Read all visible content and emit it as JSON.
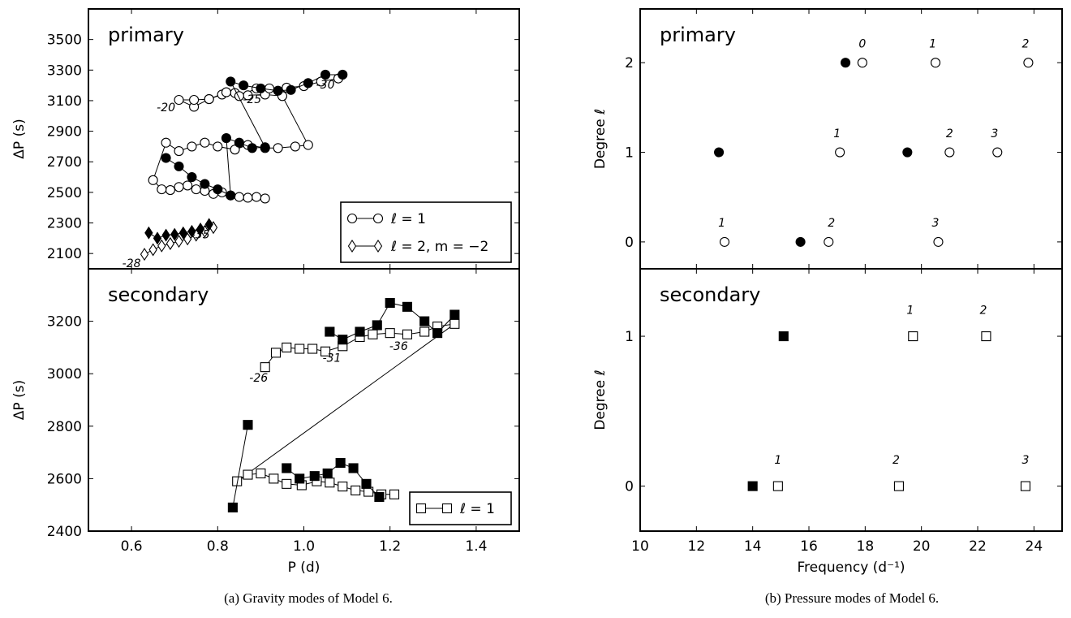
{
  "captions": {
    "a": "(a) Gravity modes of Model 6.",
    "b": "(b) Pressure modes of Model 6."
  },
  "colors": {
    "axes": "#000000",
    "filled": "#000000",
    "open": "#ffffff"
  },
  "chart_data": [
    {
      "id": "gravity-primary",
      "type": "scatter",
      "panel_label": "primary",
      "ylabel": "ΔP (s)",
      "xlabel": "",
      "xlim": [
        0.5,
        1.5
      ],
      "ylim": [
        2000,
        3700
      ],
      "yticks": [
        2100,
        2300,
        2500,
        2700,
        2900,
        3100,
        3300,
        3500
      ],
      "xticks": [],
      "legend_placement": "lower-right",
      "legend": [
        "ℓ = 1",
        "ℓ = 2, m = −2"
      ],
      "series": [
        {
          "marker": "circle",
          "fill": "open",
          "connected": true,
          "x": [
            0.91,
            0.89,
            0.87,
            0.85,
            0.83,
            0.81,
            0.79,
            0.77,
            0.75,
            0.73,
            0.71,
            0.69,
            0.67,
            0.65,
            0.68,
            0.71,
            0.74,
            0.77,
            0.8,
            0.84,
            0.87,
            0.91,
            0.94,
            0.98,
            1.01,
            0.95,
            0.91,
            0.87,
            0.84,
            0.81,
            0.78,
            0.745,
            0.71,
            0.745,
            0.78,
            0.82,
            0.85,
            0.89,
            0.92,
            0.96,
            1.0,
            1.04,
            1.08
          ],
          "y": [
            2460,
            2470,
            2465,
            2470,
            2480,
            2500,
            2490,
            2510,
            2520,
            2545,
            2535,
            2515,
            2520,
            2580,
            2825,
            2770,
            2800,
            2825,
            2800,
            2780,
            2810,
            2790,
            2790,
            2800,
            2810,
            3130,
            3140,
            3135,
            3150,
            3140,
            3110,
            3060,
            3105,
            3105,
            3110,
            3155,
            3130,
            3180,
            3180,
            3185,
            3195,
            3225,
            3245
          ]
        },
        {
          "marker": "circle",
          "fill": "filled",
          "connected": true,
          "x": [
            0.68,
            0.71,
            0.74,
            0.77,
            0.8,
            0.83,
            0.82,
            0.85,
            0.88,
            0.91,
            0.83,
            0.86,
            0.9,
            0.94,
            0.97,
            1.01,
            1.05,
            1.09
          ],
          "y": [
            2725,
            2670,
            2600,
            2555,
            2520,
            2480,
            2855,
            2825,
            2790,
            2795,
            3225,
            3200,
            3180,
            3165,
            3170,
            3215,
            3270,
            3270
          ]
        },
        {
          "marker": "diamond",
          "fill": "open",
          "connected": true,
          "x": [
            0.63,
            0.65,
            0.67,
            0.69,
            0.71,
            0.73,
            0.75,
            0.77,
            0.79
          ],
          "y": [
            2095,
            2125,
            2150,
            2165,
            2180,
            2195,
            2220,
            2245,
            2270
          ]
        },
        {
          "marker": "diamond",
          "fill": "filled",
          "connected": true,
          "x": [
            0.64,
            0.66,
            0.68,
            0.7,
            0.72,
            0.74,
            0.76,
            0.78
          ],
          "y": [
            2235,
            2200,
            2220,
            2225,
            2235,
            2245,
            2260,
            2290
          ]
        }
      ],
      "annotations": [
        {
          "text": "-20",
          "x": 0.68,
          "y": 3030
        },
        {
          "text": "-25",
          "x": 0.88,
          "y": 3085
        },
        {
          "text": "-30",
          "x": 1.05,
          "y": 3180
        },
        {
          "text": "-35",
          "x": 0.76,
          "y": 2200
        },
        {
          "text": "-28",
          "x": 0.6,
          "y": 2010
        }
      ]
    },
    {
      "id": "gravity-secondary",
      "type": "scatter",
      "panel_label": "secondary",
      "ylabel": "ΔP (s)",
      "xlabel": "P (d)",
      "xlim": [
        0.5,
        1.5
      ],
      "ylim": [
        2400,
        3400
      ],
      "yticks": [
        2400,
        2600,
        2800,
        3000,
        3200
      ],
      "xticks": [
        0.6,
        0.8,
        1.0,
        1.2,
        1.4
      ],
      "legend_placement": "lower-right",
      "legend": [
        "ℓ = 1"
      ],
      "series": [
        {
          "marker": "square",
          "fill": "open",
          "connected": true,
          "x": [
            0.91,
            0.935,
            0.96,
            0.99,
            1.02,
            1.05,
            1.09,
            1.13,
            1.16,
            1.2,
            1.24,
            1.28,
            1.31,
            1.35,
            0.845,
            0.87,
            0.9,
            0.93,
            0.96,
            0.995,
            1.03,
            1.06,
            1.09,
            1.12,
            1.15,
            1.18,
            1.21
          ],
          "y": [
            3025,
            3080,
            3100,
            3095,
            3095,
            3085,
            3105,
            3140,
            3150,
            3155,
            3150,
            3160,
            3180,
            3190,
            2590,
            2615,
            2620,
            2600,
            2580,
            2575,
            2590,
            2585,
            2570,
            2555,
            2550,
            2540,
            2540
          ]
        },
        {
          "marker": "square",
          "fill": "filled",
          "connected": true,
          "x": [
            1.06,
            1.09,
            1.13,
            1.17,
            1.2,
            1.24,
            1.28,
            1.31,
            1.35
          ],
          "y": [
            3160,
            3130,
            3160,
            3185,
            3270,
            3255,
            3200,
            3155,
            3225
          ]
        },
        {
          "marker": "square",
          "fill": "filled",
          "connected": true,
          "x": [
            0.835,
            0.87
          ],
          "y": [
            2490,
            2805
          ]
        },
        {
          "marker": "square",
          "fill": "filled",
          "connected": true,
          "x": [
            0.96,
            0.99,
            1.025,
            1.055,
            1.085,
            1.115,
            1.145,
            1.175
          ],
          "y": [
            2640,
            2600,
            2610,
            2620,
            2660,
            2640,
            2580,
            2530
          ]
        }
      ],
      "annotations": [
        {
          "text": "-26",
          "x": 0.895,
          "y": 2970
        },
        {
          "text": "-31",
          "x": 1.065,
          "y": 3045
        },
        {
          "text": "-36",
          "x": 1.22,
          "y": 3090
        }
      ]
    },
    {
      "id": "pressure-primary",
      "type": "scatter",
      "panel_label": "primary",
      "ylabel": "Degree ℓ",
      "xlabel": "",
      "xlim": [
        10,
        25
      ],
      "ylim": [
        -0.3,
        2.6
      ],
      "yticks": [
        0,
        1,
        2
      ],
      "xticks": [],
      "series": [
        {
          "marker": "circle",
          "fill": "open",
          "connected": false,
          "x": [
            13.0,
            16.7,
            20.6,
            17.1,
            21.0,
            22.7,
            17.9,
            20.5,
            23.8
          ],
          "y": [
            0,
            0,
            0,
            1,
            1,
            1,
            2,
            2,
            2
          ]
        },
        {
          "marker": "circle",
          "fill": "filled",
          "connected": false,
          "x": [
            15.7,
            12.8,
            19.5,
            17.3
          ],
          "y": [
            0,
            1,
            1,
            2
          ]
        }
      ],
      "annotations": [
        {
          "text": "1",
          "x": 12.9,
          "y": 0.17
        },
        {
          "text": "2",
          "x": 16.8,
          "y": 0.17
        },
        {
          "text": "3",
          "x": 20.5,
          "y": 0.17
        },
        {
          "text": "1",
          "x": 17.0,
          "y": 1.17
        },
        {
          "text": "2",
          "x": 21.0,
          "y": 1.17
        },
        {
          "text": "3",
          "x": 22.6,
          "y": 1.17
        },
        {
          "text": "0",
          "x": 17.9,
          "y": 2.17
        },
        {
          "text": "1",
          "x": 20.4,
          "y": 2.17
        },
        {
          "text": "2",
          "x": 23.7,
          "y": 2.17
        }
      ]
    },
    {
      "id": "pressure-secondary",
      "type": "scatter",
      "panel_label": "secondary",
      "ylabel": "Degree ℓ",
      "xlabel": "Frequency (d⁻¹)",
      "xlim": [
        10,
        25
      ],
      "ylim": [
        -0.3,
        1.45
      ],
      "yticks": [
        0,
        1
      ],
      "xticks": [
        10,
        12,
        14,
        16,
        18,
        20,
        22,
        24
      ],
      "series": [
        {
          "marker": "square",
          "fill": "open",
          "connected": false,
          "x": [
            14.9,
            19.2,
            23.7,
            19.7,
            22.3
          ],
          "y": [
            0,
            0,
            0,
            1,
            1
          ]
        },
        {
          "marker": "square",
          "fill": "filled",
          "connected": false,
          "x": [
            14.0,
            15.1
          ],
          "y": [
            0,
            1
          ]
        }
      ],
      "annotations": [
        {
          "text": "1",
          "x": 14.9,
          "y": 0.15
        },
        {
          "text": "2",
          "x": 19.1,
          "y": 0.15
        },
        {
          "text": "3",
          "x": 23.7,
          "y": 0.15
        },
        {
          "text": "1",
          "x": 19.6,
          "y": 1.15
        },
        {
          "text": "2",
          "x": 22.2,
          "y": 1.15
        }
      ]
    }
  ]
}
